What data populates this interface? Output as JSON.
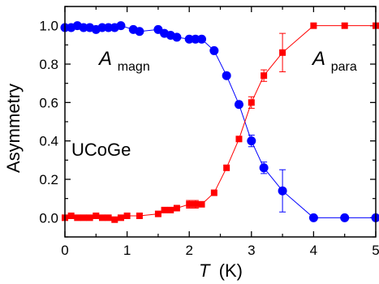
{
  "chart_data": {
    "type": "line",
    "xlabel_var": "T",
    "xlabel_unit": "(K)",
    "ylabel": "Asymmetry",
    "xlim": [
      0,
      5
    ],
    "ylim": [
      -0.1,
      1.1
    ],
    "xticks": [
      0,
      1,
      2,
      3,
      4,
      5
    ],
    "xtick_labels": [
      "0",
      "1",
      "2",
      "3",
      "4",
      "5"
    ],
    "yticks": [
      0.0,
      0.2,
      0.4,
      0.6,
      0.8,
      1.0
    ],
    "ytick_labels": [
      "0.0",
      "0.2",
      "0.4",
      "0.6",
      "0.8",
      "1.0"
    ],
    "annotations": {
      "sample": "UCoGe",
      "magn_main": "A",
      "magn_sub": "magn",
      "para_main": "A",
      "para_sub": "para"
    },
    "series": [
      {
        "label_main": "A",
        "label_sub": "magn",
        "color": "#0000ff",
        "marker": "circle",
        "points": [
          {
            "x": 0.0,
            "y": 0.99
          },
          {
            "x": 0.1,
            "y": 0.99
          },
          {
            "x": 0.2,
            "y": 1.0
          },
          {
            "x": 0.3,
            "y": 0.99
          },
          {
            "x": 0.4,
            "y": 0.99
          },
          {
            "x": 0.5,
            "y": 0.98
          },
          {
            "x": 0.6,
            "y": 0.99
          },
          {
            "x": 0.7,
            "y": 0.99
          },
          {
            "x": 0.8,
            "y": 0.99
          },
          {
            "x": 0.9,
            "y": 1.0
          },
          {
            "x": 1.1,
            "y": 0.98
          },
          {
            "x": 1.2,
            "y": 0.97
          },
          {
            "x": 1.5,
            "y": 0.98
          },
          {
            "x": 1.6,
            "y": 0.96
          },
          {
            "x": 1.7,
            "y": 0.95
          },
          {
            "x": 1.8,
            "y": 0.94
          },
          {
            "x": 2.0,
            "y": 0.93
          },
          {
            "x": 2.1,
            "y": 0.93
          },
          {
            "x": 2.2,
            "y": 0.93
          },
          {
            "x": 2.4,
            "y": 0.87
          },
          {
            "x": 2.6,
            "y": 0.74
          },
          {
            "x": 2.8,
            "y": 0.59
          },
          {
            "x": 3.0,
            "y": 0.4,
            "err": 0.03
          },
          {
            "x": 3.2,
            "y": 0.26,
            "err": 0.03
          },
          {
            "x": 3.5,
            "y": 0.14,
            "err": 0.11
          },
          {
            "x": 4.0,
            "y": 0.0
          },
          {
            "x": 4.5,
            "y": 0.0
          },
          {
            "x": 5.0,
            "y": 0.0
          }
        ]
      },
      {
        "label_main": "A",
        "label_sub": "para",
        "color": "#ff0000",
        "marker": "square",
        "points": [
          {
            "x": 0.0,
            "y": 0.0
          },
          {
            "x": 0.1,
            "y": 0.01
          },
          {
            "x": 0.2,
            "y": 0.0
          },
          {
            "x": 0.3,
            "y": 0.0
          },
          {
            "x": 0.4,
            "y": 0.0
          },
          {
            "x": 0.5,
            "y": 0.01
          },
          {
            "x": 0.6,
            "y": 0.0
          },
          {
            "x": 0.7,
            "y": 0.0
          },
          {
            "x": 0.8,
            "y": -0.01
          },
          {
            "x": 0.9,
            "y": 0.0
          },
          {
            "x": 1.0,
            "y": 0.01
          },
          {
            "x": 1.2,
            "y": 0.01
          },
          {
            "x": 1.5,
            "y": 0.02
          },
          {
            "x": 1.6,
            "y": 0.04
          },
          {
            "x": 1.7,
            "y": 0.04
          },
          {
            "x": 1.8,
            "y": 0.05
          },
          {
            "x": 2.0,
            "y": 0.07,
            "err": 0.02
          },
          {
            "x": 2.1,
            "y": 0.07,
            "err": 0.02
          },
          {
            "x": 2.2,
            "y": 0.07
          },
          {
            "x": 2.4,
            "y": 0.13
          },
          {
            "x": 2.6,
            "y": 0.26
          },
          {
            "x": 2.8,
            "y": 0.41
          },
          {
            "x": 3.0,
            "y": 0.6,
            "err": 0.03
          },
          {
            "x": 3.2,
            "y": 0.74,
            "err": 0.03
          },
          {
            "x": 3.5,
            "y": 0.86,
            "err": 0.1
          },
          {
            "x": 4.0,
            "y": 1.0
          },
          {
            "x": 4.5,
            "y": 1.0
          },
          {
            "x": 5.0,
            "y": 1.0
          }
        ]
      }
    ]
  }
}
